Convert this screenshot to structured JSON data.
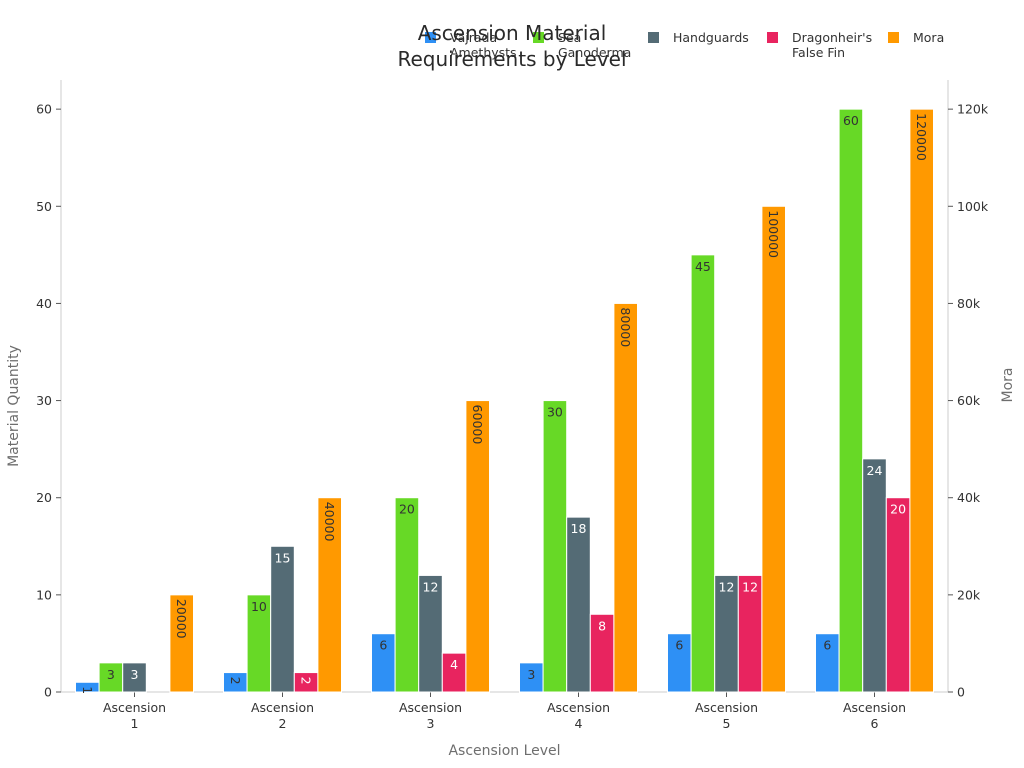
{
  "chart_data": {
    "type": "bar",
    "title": "Ascension Material Requirements by Level",
    "title_lines": [
      "Ascension Material",
      "Requirements by Level"
    ],
    "xlabel": "Ascension Level",
    "ylabel": "Material Quantity",
    "y2label": "Mora",
    "categories": [
      "Ascension 1",
      "Ascension 2",
      "Ascension 3",
      "Ascension 4",
      "Ascension 5",
      "Ascension 6"
    ],
    "category_lines": [
      [
        "Ascension",
        "1"
      ],
      [
        "Ascension",
        "2"
      ],
      [
        "Ascension",
        "3"
      ],
      [
        "Ascension",
        "4"
      ],
      [
        "Ascension",
        "5"
      ],
      [
        "Ascension",
        "6"
      ]
    ],
    "ylim": [
      0,
      63
    ],
    "y2lim": [
      0,
      126000
    ],
    "yticks": [
      0,
      10,
      20,
      30,
      40,
      50,
      60
    ],
    "y2ticks": [
      0,
      20000,
      40000,
      60000,
      80000,
      100000,
      120000
    ],
    "y2tick_labels": [
      "0",
      "20k",
      "40k",
      "60k",
      "80k",
      "100k",
      "120k"
    ],
    "grid": false,
    "legend_position": "top",
    "series": [
      {
        "name": "Vajrada Amethysts",
        "name_lines": [
          "Vajrada",
          "Amethysts"
        ],
        "color": "#2e90f5",
        "axis": "left",
        "values": [
          1,
          2,
          6,
          3,
          6,
          6
        ],
        "label_color": "#333333",
        "vertical_labels": [
          true,
          true,
          false,
          false,
          false,
          false
        ]
      },
      {
        "name": "Sea Ganoderma",
        "name_lines": [
          "Sea",
          "Ganoderma"
        ],
        "color": "#67d926",
        "axis": "left",
        "values": [
          3,
          10,
          20,
          30,
          45,
          60
        ],
        "label_color": "#333333",
        "vertical_labels": [
          false,
          false,
          false,
          false,
          false,
          false
        ]
      },
      {
        "name": "Handguards",
        "name_lines": [
          "Handguards"
        ],
        "color": "#546b75",
        "axis": "left",
        "values": [
          3,
          15,
          12,
          18,
          12,
          24
        ],
        "label_color": "#ffffff",
        "vertical_labels": [
          false,
          false,
          false,
          false,
          false,
          false
        ]
      },
      {
        "name": "Dragonheir's False Fin",
        "name_lines": [
          "Dragonheir's",
          "False Fin"
        ],
        "color": "#e8245f",
        "axis": "left",
        "values": [
          0,
          2,
          4,
          8,
          12,
          20
        ],
        "label_color": "#ffffff",
        "vertical_labels": [
          false,
          true,
          false,
          false,
          false,
          false
        ]
      },
      {
        "name": "Mora",
        "name_lines": [
          "Mora"
        ],
        "color": "#ff9900",
        "axis": "right",
        "values": [
          20000,
          40000,
          60000,
          80000,
          100000,
          120000
        ],
        "label_color": "#333333",
        "vertical_labels": [
          true,
          true,
          true,
          true,
          true,
          true
        ]
      }
    ]
  }
}
